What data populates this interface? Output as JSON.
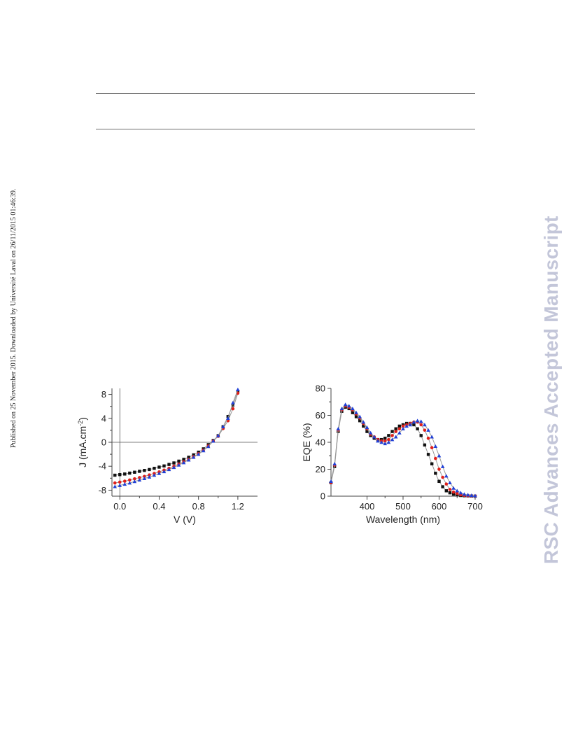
{
  "side_note": "Published on 25 November 2015. Downloaded by Université Laval on 26/11/2015 01:46:39.",
  "watermark": "RSC Advances Accepted Manuscript",
  "colors": {
    "black": "#111111",
    "red": "#e0201a",
    "blue": "#1f3fd6",
    "fit_line": "#9a9a9a"
  },
  "chart_data": [
    {
      "type": "scatter",
      "title": "",
      "xlabel": "V (V)",
      "ylabel": "J (mA.cm",
      "ylabel_sup": "-2",
      "ylabel_tail": ")",
      "xlim": [
        -0.08,
        1.4
      ],
      "ylim": [
        -9,
        9
      ],
      "xticks": [
        0.0,
        0.4,
        0.8,
        1.2
      ],
      "xtick_labels": [
        "0.0",
        "0.4",
        "0.8",
        "1.2"
      ],
      "yticks": [
        -8,
        -4,
        0,
        4,
        8
      ],
      "ytick_labels": [
        "-8",
        "-4",
        "0",
        "4",
        "8"
      ],
      "reference_lines": {
        "x": 0,
        "y": 0
      },
      "grid": false,
      "series": [
        {
          "color": "black",
          "marker": "square",
          "x": [
            -0.05,
            0.0,
            0.05,
            0.1,
            0.15,
            0.2,
            0.25,
            0.3,
            0.35,
            0.4,
            0.45,
            0.5,
            0.55,
            0.6,
            0.65,
            0.7,
            0.75,
            0.8,
            0.85,
            0.9,
            0.95,
            1.0,
            1.05,
            1.1,
            1.15,
            1.2
          ],
          "y": [
            -5.5,
            -5.4,
            -5.3,
            -5.15,
            -5.0,
            -4.85,
            -4.7,
            -4.55,
            -4.35,
            -4.15,
            -3.95,
            -3.7,
            -3.45,
            -3.15,
            -2.85,
            -2.5,
            -2.1,
            -1.65,
            -1.1,
            -0.4,
            0.3,
            1.1,
            2.6,
            4.3,
            6.2,
            8.5
          ]
        },
        {
          "color": "red",
          "marker": "circle",
          "x": [
            -0.05,
            0.0,
            0.05,
            0.1,
            0.15,
            0.2,
            0.25,
            0.3,
            0.35,
            0.4,
            0.45,
            0.5,
            0.55,
            0.6,
            0.65,
            0.7,
            0.75,
            0.8,
            0.85,
            0.9,
            0.95,
            1.0,
            1.05,
            1.1,
            1.15,
            1.2
          ],
          "y": [
            -6.8,
            -6.65,
            -6.5,
            -6.3,
            -6.1,
            -5.9,
            -5.7,
            -5.45,
            -5.2,
            -4.95,
            -4.65,
            -4.35,
            -4.0,
            -3.65,
            -3.25,
            -2.85,
            -2.4,
            -1.9,
            -1.3,
            -0.6,
            0.2,
            1.0,
            2.3,
            3.6,
            5.6,
            8.2
          ]
        },
        {
          "color": "blue",
          "marker": "triangle",
          "x": [
            -0.05,
            0.0,
            0.05,
            0.1,
            0.15,
            0.2,
            0.25,
            0.3,
            0.35,
            0.4,
            0.45,
            0.5,
            0.55,
            0.6,
            0.65,
            0.7,
            0.75,
            0.8,
            0.85,
            0.9,
            0.95,
            1.0,
            1.05,
            1.1,
            1.15,
            1.2
          ],
          "y": [
            -7.4,
            -7.2,
            -7.0,
            -6.8,
            -6.55,
            -6.3,
            -6.05,
            -5.8,
            -5.5,
            -5.2,
            -4.9,
            -4.55,
            -4.2,
            -3.8,
            -3.4,
            -2.95,
            -2.5,
            -2.0,
            -1.4,
            -0.7,
            0.2,
            1.1,
            2.6,
            4.0,
            6.6,
            8.8
          ]
        }
      ]
    },
    {
      "type": "scatter",
      "title": "",
      "xlabel": "Wavelength (nm)",
      "ylabel": "EQE (%)",
      "xlim": [
        300,
        700
      ],
      "ylim": [
        0,
        80
      ],
      "xticks": [
        400,
        500,
        600,
        700
      ],
      "xtick_labels": [
        "400",
        "500",
        "600",
        "700"
      ],
      "yticks": [
        0,
        20,
        40,
        60,
        80
      ],
      "ytick_labels": [
        "0",
        "20",
        "40",
        "60",
        "80"
      ],
      "grid": false,
      "series": [
        {
          "color": "black",
          "marker": "square",
          "x": [
            300,
            310,
            320,
            330,
            340,
            350,
            360,
            370,
            380,
            390,
            400,
            410,
            420,
            430,
            440,
            450,
            460,
            470,
            480,
            490,
            500,
            510,
            520,
            530,
            540,
            550,
            560,
            570,
            580,
            590,
            600,
            610,
            620,
            630,
            640,
            650,
            660,
            670,
            680,
            690,
            700
          ],
          "y": [
            10,
            22,
            48,
            63,
            66,
            65,
            62,
            59,
            56,
            52,
            48,
            45,
            43,
            42,
            42,
            43,
            45,
            48,
            50,
            52,
            53,
            54,
            54,
            53,
            50,
            45,
            38,
            31,
            24,
            17,
            11,
            7,
            4,
            2.5,
            1.5,
            1,
            0.5,
            0.3,
            0.2,
            0.1,
            0
          ]
        },
        {
          "color": "red",
          "marker": "circle",
          "x": [
            300,
            310,
            320,
            330,
            340,
            350,
            360,
            370,
            380,
            390,
            400,
            410,
            420,
            430,
            440,
            450,
            460,
            470,
            480,
            490,
            500,
            510,
            520,
            530,
            540,
            550,
            560,
            570,
            580,
            590,
            600,
            610,
            620,
            630,
            640,
            650,
            660,
            670,
            680,
            690,
            700
          ],
          "y": [
            10,
            23,
            49,
            64,
            67,
            66,
            64,
            61,
            58,
            54,
            50,
            46,
            44,
            42,
            41,
            41,
            42,
            45,
            48,
            50,
            52,
            53,
            54,
            55,
            55,
            53,
            49,
            43,
            36,
            28,
            20,
            14,
            9,
            5,
            3,
            2,
            1,
            0.6,
            0.3,
            0.2,
            0.1
          ]
        },
        {
          "color": "blue",
          "marker": "triangle",
          "x": [
            300,
            310,
            320,
            330,
            340,
            350,
            360,
            370,
            380,
            390,
            400,
            410,
            420,
            430,
            440,
            450,
            460,
            470,
            480,
            490,
            500,
            510,
            520,
            530,
            540,
            550,
            560,
            570,
            580,
            590,
            600,
            610,
            620,
            630,
            640,
            650,
            660,
            670,
            680,
            690,
            700
          ],
          "y": [
            11,
            24,
            50,
            65,
            68,
            67,
            65,
            62,
            59,
            55,
            51,
            47,
            44,
            41,
            40,
            39,
            40,
            42,
            44,
            47,
            50,
            52,
            53,
            55,
            56,
            55.5,
            53,
            49,
            44,
            37,
            30,
            22,
            15,
            10,
            6,
            4,
            2.5,
            1.5,
            1,
            0.6,
            0.3
          ]
        }
      ]
    }
  ]
}
